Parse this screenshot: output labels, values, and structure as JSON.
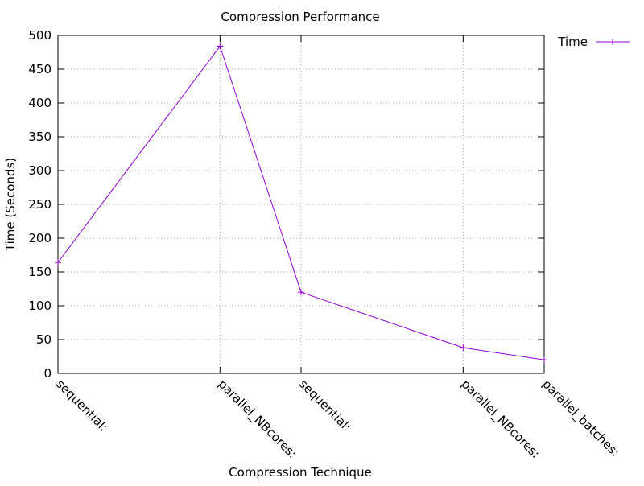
{
  "chart_data": {
    "type": "line",
    "title": "Compression Performance",
    "xlabel": "Compression Technique",
    "ylabel": "Time (Seconds)",
    "x": [
      0,
      2,
      3,
      5,
      6
    ],
    "x_tick_labels": [
      {
        "x": 0,
        "label": "sequential:"
      },
      {
        "x": 2,
        "label": "parallel_NBcores:"
      },
      {
        "x": 3,
        "label": "sequential:"
      },
      {
        "x": 5,
        "label": "parallel_NBcores:"
      },
      {
        "x": 6,
        "label": "parallel_batches:"
      }
    ],
    "series": [
      {
        "name": "Time",
        "values": [
          164,
          484,
          120,
          38,
          20
        ],
        "color": "#9400d3",
        "marker": "plus"
      }
    ],
    "xlim": [
      0,
      6
    ],
    "ylim": [
      0,
      500
    ],
    "y_ticks": [
      0,
      50,
      100,
      150,
      200,
      250,
      300,
      350,
      400,
      450,
      500
    ],
    "grid": true,
    "legend_position": "top-right-outside"
  }
}
